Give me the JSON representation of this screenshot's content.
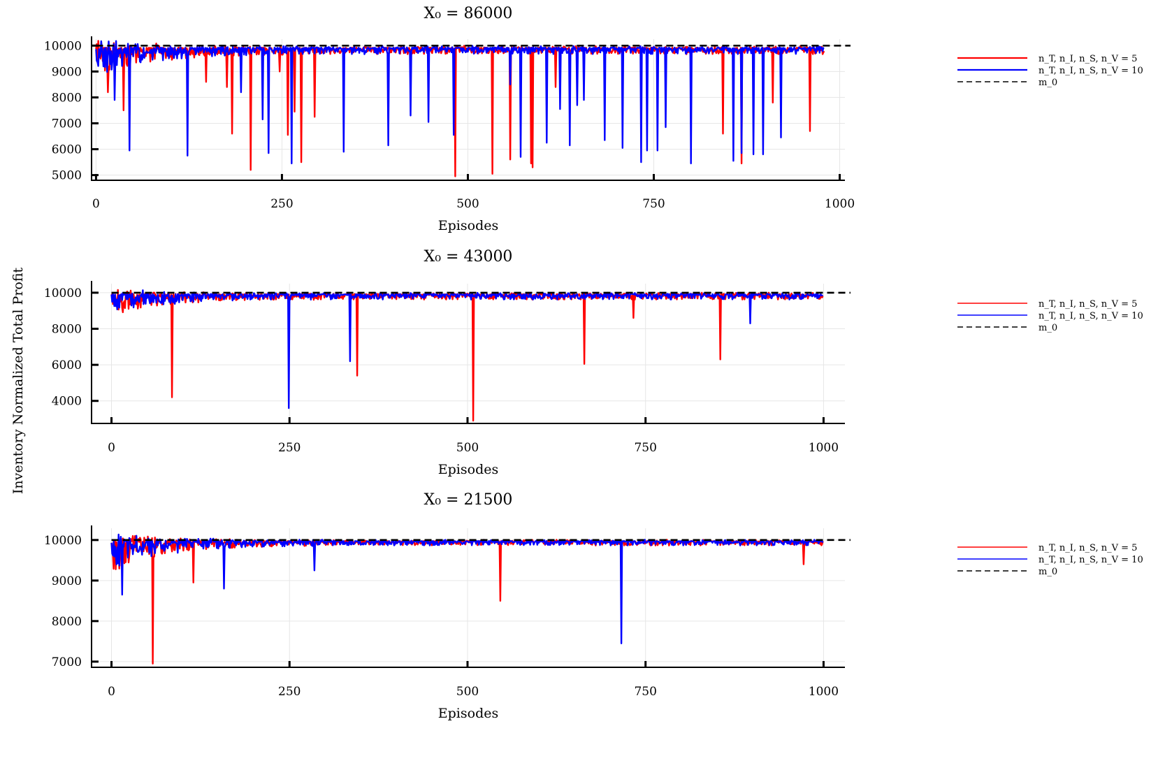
{
  "figure": {
    "ylabel": "Inventory Normalized Total Profit"
  },
  "chart_data": [
    {
      "type": "line",
      "title": "X₀ = 86000",
      "xlabel": "Episodes",
      "ylabel": "Inventory Normalized Total Profit",
      "xlim": [
        -6,
        1007
      ],
      "ylim": [
        4800,
        10250
      ],
      "xticks": [
        0,
        250,
        500,
        750,
        1000
      ],
      "yticks": [
        5000,
        6000,
        7000,
        8000,
        9000,
        10000
      ],
      "grid": true,
      "legend_position": "right",
      "legend": [
        "n_T, n_I, n_S, n_V = 5",
        "n_T, n_I, n_S, n_V = 10",
        "m_0"
      ],
      "reference_line": {
        "name": "m_0",
        "value": 10000,
        "color": "#000000",
        "style": "dashed"
      },
      "series": [
        {
          "name": "n_T, n_I, n_S, n_V = 5",
          "color": "#ff0000",
          "length": 980,
          "seed": 11,
          "early_noise": 1200,
          "late_noise": 250,
          "baseline": 9920,
          "dips": [
            [
              16,
              8200
            ],
            [
              37,
              7500
            ],
            [
              148,
              8600
            ],
            [
              176,
              8400
            ],
            [
              183,
              6600
            ],
            [
              208,
              5200
            ],
            [
              247,
              9000
            ],
            [
              258,
              6550
            ],
            [
              267,
              7450
            ],
            [
              276,
              5500
            ],
            [
              294,
              7250
            ],
            [
              483,
              4950
            ],
            [
              533,
              5050
            ],
            [
              557,
              5600
            ],
            [
              585,
              5450
            ],
            [
              587,
              5300
            ],
            [
              618,
              8400
            ],
            [
              843,
              6600
            ],
            [
              868,
              5450
            ],
            [
              910,
              7800
            ],
            [
              960,
              6700
            ]
          ]
        },
        {
          "name": "n_T, n_I, n_S, n_V = 10",
          "color": "#0000ff",
          "length": 980,
          "seed": 29,
          "early_noise": 1200,
          "late_noise": 250,
          "baseline": 9920,
          "dips": [
            [
              25,
              7900
            ],
            [
              45,
              5950
            ],
            [
              123,
              5750
            ],
            [
              195,
              8200
            ],
            [
              224,
              7150
            ],
            [
              232,
              5850
            ],
            [
              263,
              5450
            ],
            [
              333,
              5900
            ],
            [
              393,
              6150
            ],
            [
              423,
              7300
            ],
            [
              447,
              7050
            ],
            [
              481,
              6550
            ],
            [
              557,
              8500
            ],
            [
              571,
              5700
            ],
            [
              606,
              6250
            ],
            [
              624,
              7550
            ],
            [
              637,
              6150
            ],
            [
              647,
              7700
            ],
            [
              656,
              7900
            ],
            [
              684,
              6350
            ],
            [
              708,
              6050
            ],
            [
              733,
              5500
            ],
            [
              741,
              5950
            ],
            [
              755,
              5950
            ],
            [
              766,
              6850
            ],
            [
              800,
              5450
            ],
            [
              857,
              5550
            ],
            [
              868,
              5850
            ],
            [
              884,
              5800
            ],
            [
              897,
              5800
            ],
            [
              921,
              6450
            ]
          ]
        }
      ]
    },
    {
      "type": "line",
      "title": "X₀ = 43000",
      "xlabel": "Episodes",
      "ylabel": "Inventory Normalized Total Profit",
      "xlim": [
        -28,
        1030
      ],
      "ylim": [
        2750,
        10500
      ],
      "xticks": [
        0,
        250,
        500,
        750,
        1000
      ],
      "yticks": [
        4000,
        6000,
        8000,
        10000
      ],
      "grid": true,
      "legend_position": "right",
      "legend": [
        "n_T, n_I, n_S, n_V = 5",
        "n_T, n_I, n_S, n_V = 10",
        "m_0"
      ],
      "reference_line": {
        "name": "m_0",
        "value": 10000,
        "color": "#000000",
        "style": "dashed"
      },
      "series": [
        {
          "name": "n_T, n_I, n_S, n_V = 5",
          "color": "#ff0000",
          "length": 1000,
          "seed": 47,
          "early_noise": 1200,
          "late_noise": 300,
          "baseline": 9920,
          "dips": [
            [
              85,
              4200
            ],
            [
              345,
              5400
            ],
            [
              508,
              2900
            ],
            [
              664,
              6050
            ],
            [
              733,
              8600
            ],
            [
              855,
              6300
            ]
          ]
        },
        {
          "name": "n_T, n_I, n_S, n_V = 10",
          "color": "#0000ff",
          "length": 1000,
          "seed": 53,
          "early_noise": 1200,
          "late_noise": 300,
          "baseline": 9920,
          "dips": [
            [
              249,
              3600
            ],
            [
              335,
              6200
            ],
            [
              897,
              8300
            ]
          ]
        }
      ]
    },
    {
      "type": "line",
      "title": "X₀ = 21500",
      "xlabel": "Episodes",
      "ylabel": "Inventory Normalized Total Profit",
      "xlim": [
        -28,
        1030
      ],
      "ylim": [
        6860,
        10290
      ],
      "xticks": [
        0,
        250,
        500,
        750,
        1000
      ],
      "yticks": [
        7000,
        8000,
        9000,
        10000
      ],
      "grid": true,
      "legend_position": "right",
      "legend": [
        "n_T, n_I, n_S, n_V = 5",
        "n_T, n_I, n_S, n_V = 10",
        "m_0"
      ],
      "reference_line": {
        "name": "m_0",
        "value": 10000,
        "color": "#000000",
        "style": "dashed"
      },
      "series": [
        {
          "name": "n_T, n_I, n_S, n_V = 5",
          "color": "#ff0000",
          "length": 1000,
          "seed": 71,
          "early_noise": 800,
          "late_noise": 110,
          "baseline": 9975,
          "dips": [
            [
              58,
              6950
            ],
            [
              115,
              8950
            ],
            [
              546,
              8500
            ],
            [
              972,
              9400
            ]
          ]
        },
        {
          "name": "n_T, n_I, n_S, n_V = 10",
          "color": "#0000ff",
          "length": 1000,
          "seed": 83,
          "early_noise": 800,
          "late_noise": 110,
          "baseline": 9975,
          "dips": [
            [
              15,
              8650
            ],
            [
              158,
              8800
            ],
            [
              285,
              9250
            ],
            [
              716,
              7450
            ]
          ]
        }
      ]
    }
  ]
}
